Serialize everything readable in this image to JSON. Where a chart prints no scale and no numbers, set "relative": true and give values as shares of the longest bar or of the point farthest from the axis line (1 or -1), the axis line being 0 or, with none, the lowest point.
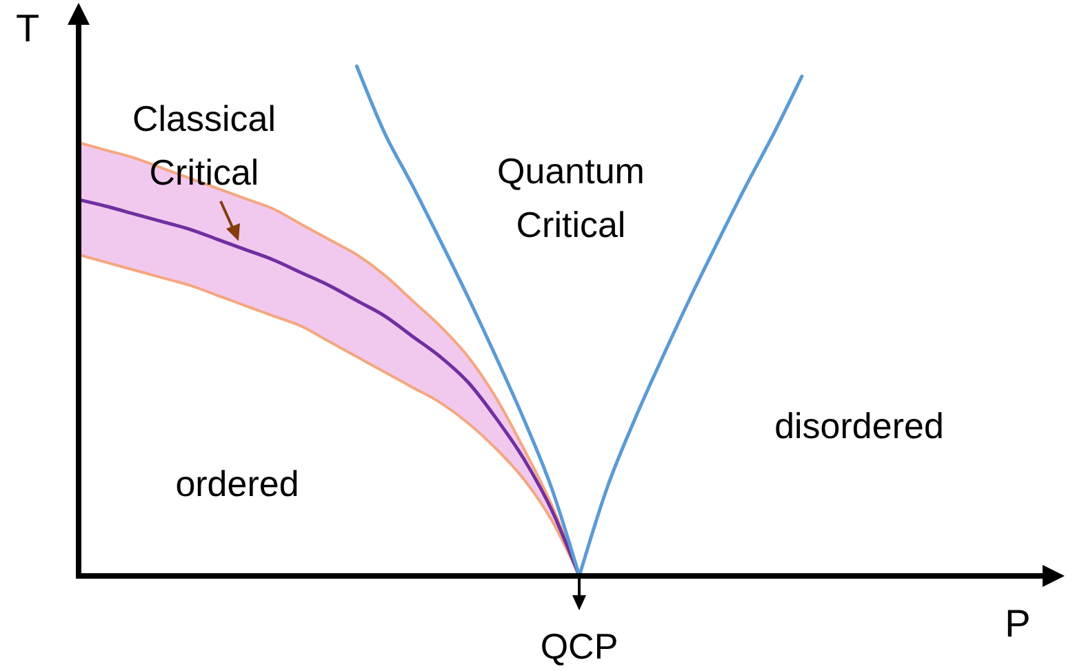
{
  "chart_data": {
    "type": "line",
    "relative": true,
    "tick_labels": false,
    "xlabel": "P",
    "ylabel": "T",
    "categories": [
      null,
      null,
      null,
      null,
      null,
      null,
      null,
      null,
      null,
      null,
      null,
      null,
      null,
      null,
      null,
      null,
      null,
      null,
      null,
      null,
      null,
      null,
      null,
      null,
      null,
      null,
      null,
      null,
      null,
      null,
      null,
      null,
      null,
      null,
      null,
      null
    ],
    "series": [
      {
        "color": "#7030a0",
        "values": [
          0.738,
          0.725,
          0.71,
          0.695,
          0.68,
          0.66,
          0.64,
          0.62,
          0.595,
          0.57,
          0.54,
          0.51,
          0.47,
          0.43,
          0.38,
          0.31,
          0.23,
          0.13,
          0,
          null,
          null,
          null,
          null,
          null,
          null,
          null,
          null,
          null,
          null,
          null,
          null,
          null,
          null,
          null,
          null,
          null
        ],
        "lower": [
          0.63,
          0.615,
          0.6,
          0.585,
          0.57,
          0.55,
          0.53,
          0.51,
          0.49,
          0.46,
          0.43,
          0.4,
          0.37,
          0.34,
          0.3,
          0.25,
          0.19,
          0.11,
          0,
          null,
          null,
          null,
          null,
          null,
          null,
          null,
          null,
          null,
          null,
          null,
          null,
          null,
          null,
          null,
          null,
          null
        ],
        "upper": [
          0.85,
          0.835,
          0.82,
          0.8,
          0.78,
          0.76,
          0.74,
          0.72,
          0.69,
          0.66,
          0.63,
          0.59,
          0.54,
          0.49,
          0.43,
          0.35,
          0.25,
          0.14,
          0,
          null,
          null,
          null,
          null,
          null,
          null,
          null,
          null,
          null,
          null,
          null,
          null,
          null,
          null,
          null,
          null,
          null
        ]
      },
      {
        "color": "#5b9bd5",
        "values": [
          null,
          null,
          null,
          null,
          null,
          null,
          null,
          null,
          null,
          null,
          1,
          0.869,
          0.766,
          0.658,
          0.547,
          0.43,
          0.308,
          0.173,
          0,
          null,
          null,
          null,
          null,
          null,
          null,
          null,
          null,
          null,
          null,
          null,
          null,
          null,
          null,
          null,
          null,
          null
        ]
      },
      {
        "color": "#5b9bd5",
        "values": [
          null,
          null,
          null,
          null,
          null,
          null,
          null,
          null,
          null,
          null,
          null,
          null,
          null,
          null,
          null,
          null,
          null,
          null,
          0,
          0.173,
          0.308,
          0.43,
          0.547,
          0.658,
          0.766,
          0.869,
          0.98,
          null,
          null,
          null,
          null,
          null,
          null,
          null,
          null,
          null
        ]
      }
    ],
    "annotations": [
      "Classical\nCritical",
      "Quantum\nCritical",
      "ordered",
      "disordered",
      "QCP"
    ]
  }
}
